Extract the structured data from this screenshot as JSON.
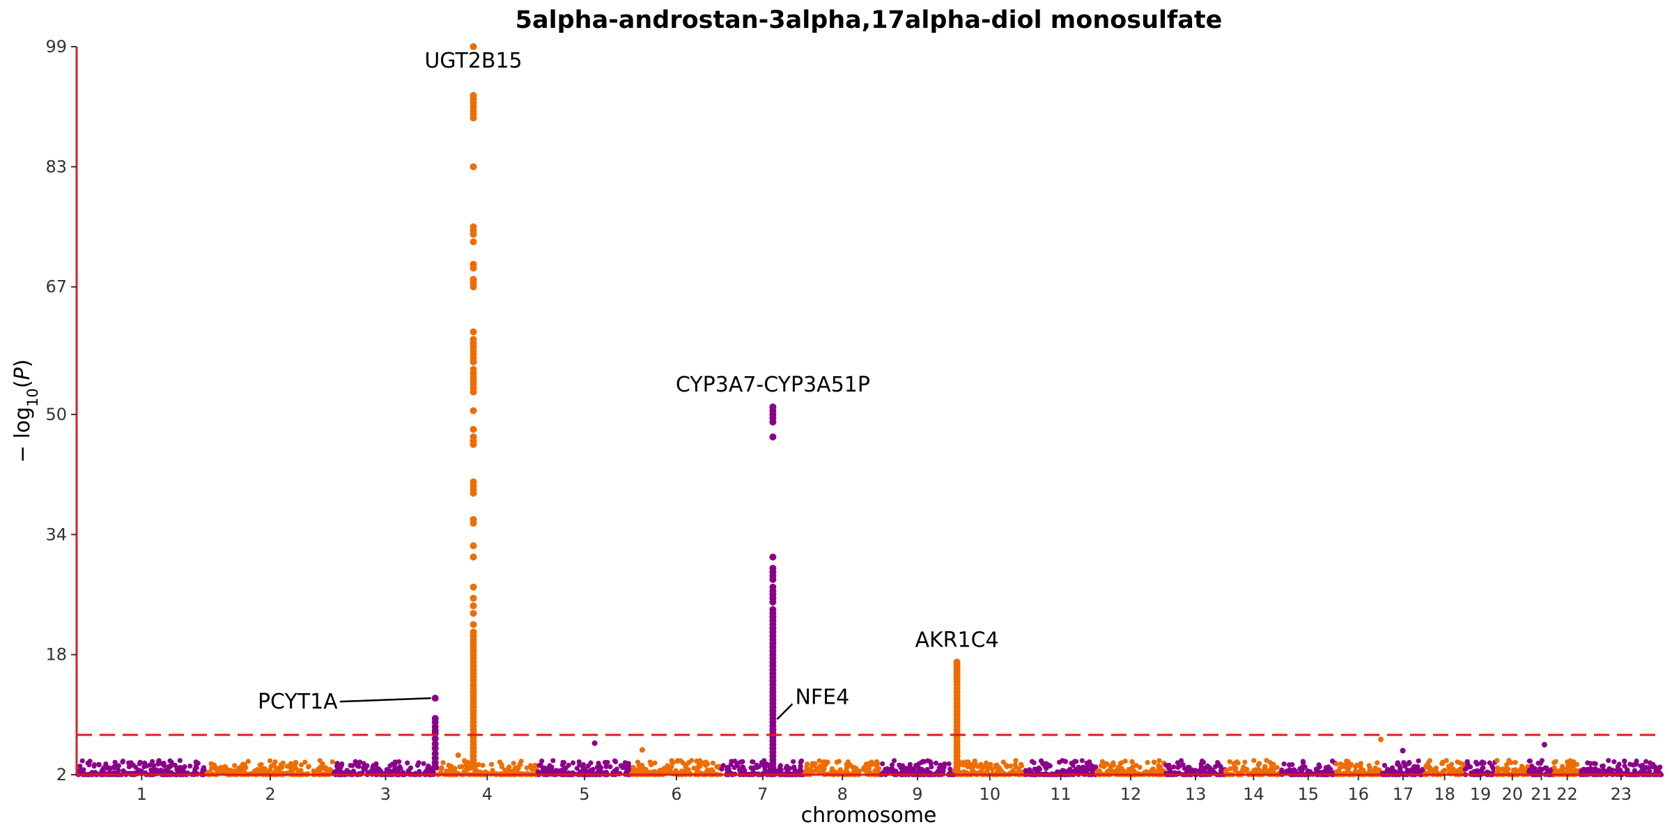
{
  "chart_data": {
    "type": "scatter",
    "title": "5alpha-androstan-3alpha,17alpha-diol monosulfate",
    "xlabel": "chromosome",
    "ylabel_parts": {
      "pre": "− log",
      "sub": "10",
      "open": "(",
      "var": "P",
      "close": ")"
    },
    "ylim": [
      2,
      99
    ],
    "yticks": [
      2,
      18,
      34,
      50,
      67,
      83,
      99
    ],
    "significance_threshold": 7.3,
    "grid": false,
    "colors": {
      "odd": "#8b008b",
      "even": "#ef6c00",
      "axis": "#e31a1c",
      "threshold": "#e31a1c"
    },
    "chromosomes": [
      {
        "label": "1",
        "length": 249
      },
      {
        "label": "2",
        "length": 243
      },
      {
        "label": "3",
        "length": 198
      },
      {
        "label": "4",
        "length": 191
      },
      {
        "label": "5",
        "length": 181
      },
      {
        "label": "6",
        "length": 171
      },
      {
        "label": "7",
        "length": 159
      },
      {
        "label": "8",
        "length": 146
      },
      {
        "label": "9",
        "length": 141
      },
      {
        "label": "10",
        "length": 136
      },
      {
        "label": "11",
        "length": 135
      },
      {
        "label": "12",
        "length": 133
      },
      {
        "label": "13",
        "length": 115
      },
      {
        "label": "14",
        "length": 107
      },
      {
        "label": "15",
        "length": 102
      },
      {
        "label": "16",
        "length": 90
      },
      {
        "label": "17",
        "length": 81
      },
      {
        "label": "18",
        "length": 78
      },
      {
        "label": "19",
        "length": 59
      },
      {
        "label": "20",
        "length": 63
      },
      {
        "label": "21",
        "length": 48
      },
      {
        "label": "22",
        "length": 51
      },
      {
        "label": "23",
        "length": 155
      }
    ],
    "peaks": [
      {
        "chr": "3",
        "pos": 194,
        "values": [
          12.2,
          9.5,
          9.0,
          8.4,
          7.9,
          7.5,
          6.8,
          6.1,
          5.5,
          4.8,
          4.2,
          3.6,
          3.1
        ]
      },
      {
        "chr": "4",
        "pos": 69,
        "values": [
          99.0,
          92.5,
          92.0,
          91.5,
          91.0,
          90.5,
          90.0,
          89.5,
          83.0,
          75.0,
          74.5,
          74.0,
          73.0,
          70.0,
          69.5,
          68.0,
          67.5,
          67.0,
          61.0,
          60.0,
          59.5,
          59.0,
          58.5,
          58.0,
          57.5,
          57.0,
          56.0,
          55.5,
          55.0,
          54.5,
          54.0,
          53.5,
          53.0,
          50.5,
          48.0,
          47.0,
          46.5,
          46.0,
          41.0,
          40.5,
          40.0,
          39.5,
          36.0,
          35.5,
          32.5,
          31.0,
          27.0,
          25.5,
          24.5,
          23.5,
          22.0,
          21.0,
          20.5,
          20.0,
          19.5,
          19.0,
          18.5,
          18.0,
          17.5,
          17.0,
          16.5,
          16.0,
          15.5,
          15.0,
          14.5,
          14.0,
          13.5,
          13.0,
          12.5,
          12.0,
          11.5,
          11.0,
          10.5,
          10.0,
          9.5,
          9.0,
          8.5,
          8.0,
          7.5,
          7.0,
          6.5,
          6.0,
          5.5,
          5.0,
          4.5,
          4.0,
          3.5,
          3.0
        ]
      },
      {
        "chr": "7",
        "pos": 99,
        "values": [
          51.0,
          50.5,
          50.0,
          49.5,
          49.0,
          47.0,
          31.0,
          29.5,
          29.0,
          28.5,
          28.0,
          27.0,
          26.5,
          26.0,
          25.5,
          25.0,
          24.0,
          23.5,
          23.0,
          22.5,
          22.0,
          21.5,
          21.0,
          20.5,
          20.0,
          19.5,
          19.0,
          18.5,
          18.0,
          17.5,
          17.0,
          16.5,
          16.0,
          15.5,
          15.0,
          14.5,
          14.0,
          13.5,
          13.0,
          12.5,
          12.0,
          11.5,
          11.0,
          10.5,
          10.0,
          9.5,
          9.0,
          8.5,
          8.0,
          7.5,
          7.0,
          6.5,
          6.0,
          5.5,
          5.0,
          4.5,
          4.0,
          3.5,
          3.0
        ]
      },
      {
        "chr": "10",
        "pos": 5,
        "values": [
          17.0,
          16.7,
          16.3,
          16.0,
          15.6,
          15.2,
          14.8,
          14.4,
          14.0,
          13.5,
          13.0,
          12.5,
          12.0,
          11.5,
          11.0,
          10.5,
          10.0,
          9.5,
          9.0,
          8.5,
          8.0,
          7.5,
          7.0,
          6.5,
          6.0,
          5.5,
          5.0,
          4.5,
          4.0,
          3.5,
          3.0
        ]
      }
    ],
    "scatter_outliers": [
      {
        "chr": "4",
        "pos": 40,
        "value": 4.6
      },
      {
        "chr": "5",
        "pos": 110,
        "value": 6.2
      },
      {
        "chr": "6",
        "pos": 20,
        "value": 5.3
      },
      {
        "chr": "16",
        "pos": 88,
        "value": 6.7
      },
      {
        "chr": "17",
        "pos": 40,
        "value": 5.2
      },
      {
        "chr": "21",
        "pos": 30,
        "value": 6.0
      }
    ],
    "annotations": [
      {
        "text": "UGT2B15",
        "chr": "4",
        "pos": 69,
        "value": 99.0
      },
      {
        "text": "CYP3A7-CYP3A51P",
        "chr": "7",
        "pos": 99,
        "value": 51.0
      },
      {
        "text": "AKR1C4",
        "chr": "10",
        "pos": 5,
        "value": 17.0
      },
      {
        "text": "PCYT1A",
        "chr": "3",
        "pos": 194,
        "value": 12.2
      },
      {
        "text": "NFE4",
        "chr": "7",
        "pos": 99,
        "value": 10.5
      }
    ]
  }
}
